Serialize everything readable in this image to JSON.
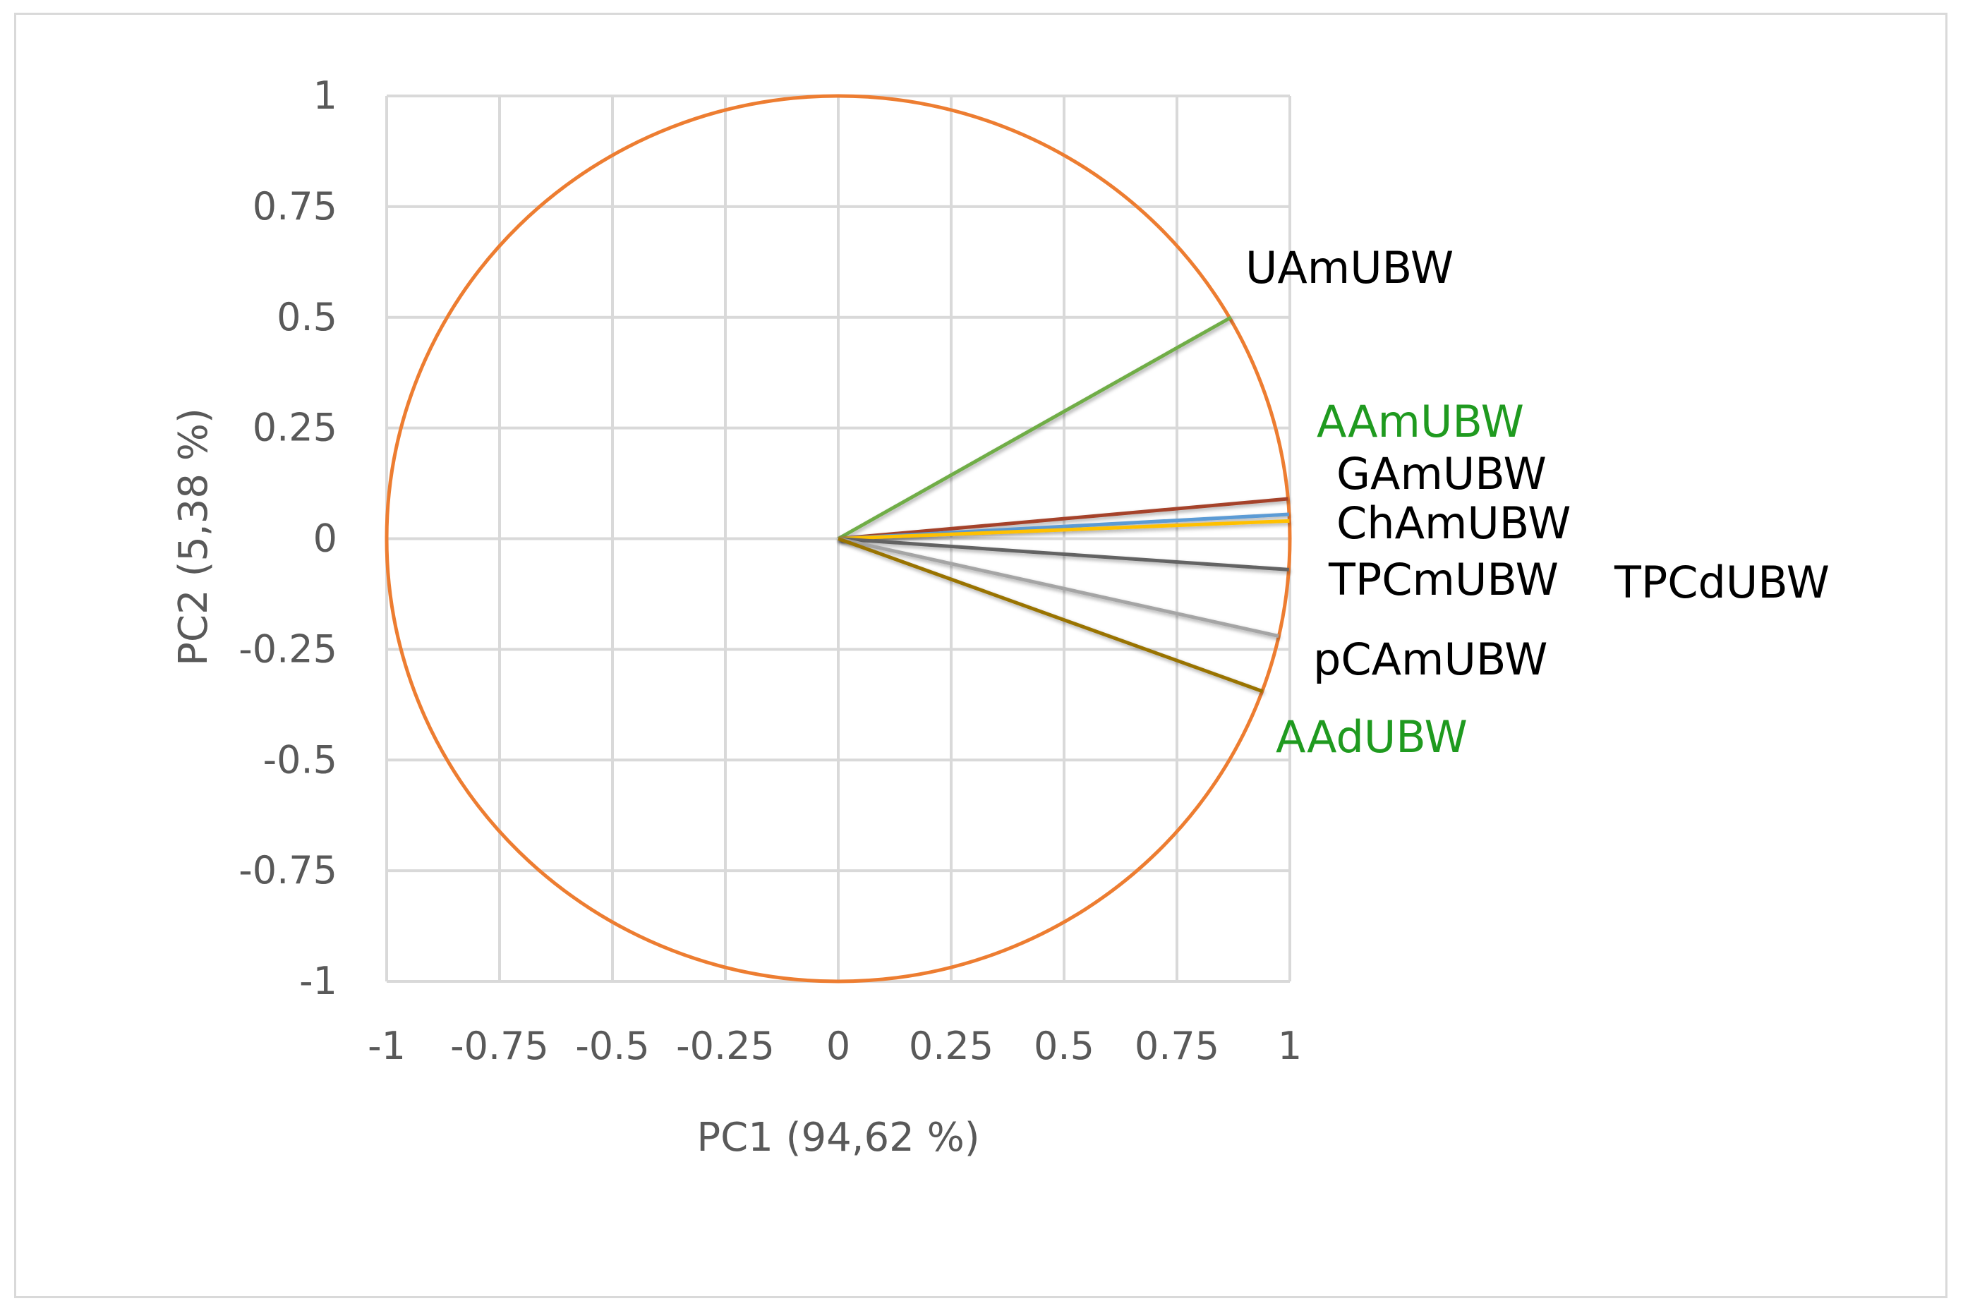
{
  "chart_data": {
    "type": "scatter",
    "subtype": "pca-correlation-circle",
    "title": "",
    "xlabel": "PC1 (94,62 %)",
    "ylabel": "PC2 (5,38 %)",
    "xlim": [
      -1,
      1
    ],
    "ylim": [
      -1,
      1
    ],
    "x_ticks": [
      -1,
      -0.75,
      -0.5,
      -0.25,
      0,
      0.25,
      0.5,
      0.75,
      1
    ],
    "y_ticks": [
      -1,
      -0.75,
      -0.5,
      -0.25,
      0,
      0.25,
      0.5,
      0.75,
      1
    ],
    "x_tick_labels": [
      "-1",
      "-0.75",
      "-0.5",
      "-0.25",
      "0",
      "0.25",
      "0.5",
      "0.75",
      "1"
    ],
    "y_tick_labels": [
      "-1",
      "-0.75",
      "-0.5",
      "-0.25",
      "0",
      "0.25",
      "0.5",
      "0.75",
      "1"
    ],
    "grid": true,
    "legend": "none",
    "circle": {
      "radius": 1,
      "color": "#ED7D31"
    },
    "vectors": [
      {
        "label": "UAmUBW",
        "x": 0.87,
        "y": 0.5,
        "color": "#70AD47",
        "label_color": "#000000"
      },
      {
        "label": "AAmUBW",
        "x": 0.996,
        "y": 0.09,
        "color": "#A5422A",
        "label_color": "#1F9A1F"
      },
      {
        "label": "GAmUBW",
        "x": 0.998,
        "y": 0.055,
        "color": "#5B9BD5",
        "label_color": "#000000"
      },
      {
        "label": "ChAmUBW",
        "x": 0.999,
        "y": 0.04,
        "color": "#FFC000",
        "label_color": "#000000"
      },
      {
        "label": "TPCmUBW",
        "x": 1.0,
        "y": 0.0,
        "color": "#264478",
        "label_color": "#000000"
      },
      {
        "label": "TPCdUBW",
        "x": 0.998,
        "y": -0.07,
        "color": "#636363",
        "label_color": "#000000"
      },
      {
        "label": "pCAmUBW",
        "x": 0.975,
        "y": -0.22,
        "color": "#A5A5A5",
        "label_color": "#000000"
      },
      {
        "label": "AAdUBW",
        "x": 0.94,
        "y": -0.345,
        "color": "#997300",
        "label_color": "#1F9A1F"
      }
    ]
  }
}
